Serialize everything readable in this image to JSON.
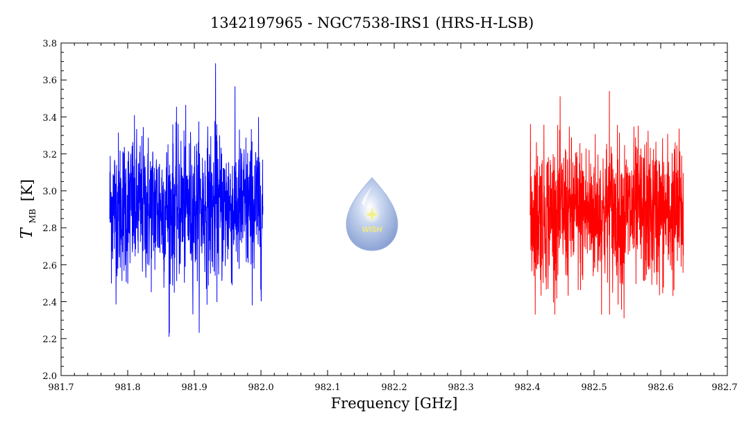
{
  "chart_data": {
    "type": "line",
    "title": "1342197965 - NGC7538-IRS1 (HRS-H-LSB)",
    "xlabel": "Frequency [GHz]",
    "ylabel_main": "T",
    "ylabel_sub": "MB",
    "ylabel_unit": "[K]",
    "xlim": [
      981.7,
      982.7
    ],
    "ylim": [
      2.0,
      3.8
    ],
    "xticks": [
      "981.7",
      "981.8",
      "981.9",
      "982.0",
      "982.1",
      "982.2",
      "982.3",
      "982.4",
      "982.5",
      "982.6",
      "982.7"
    ],
    "yticks": [
      "2.0",
      "2.2",
      "2.4",
      "2.6",
      "2.8",
      "3.0",
      "3.2",
      "3.4",
      "3.6",
      "3.8"
    ],
    "grid": false,
    "series": [
      {
        "color": "#0000ff",
        "x_range": [
          981.773,
          982.003
        ],
        "mean": 2.91,
        "noise_rms": 0.2,
        "max": 3.69,
        "max_at": 981.932,
        "min": 2.21,
        "min_at": 981.862
      },
      {
        "color": "#ff0000",
        "x_range": [
          982.404,
          982.634
        ],
        "mean": 2.88,
        "noise_rms": 0.2,
        "max": 3.54,
        "max_at": 982.523,
        "min": 2.31,
        "min_at": 982.545
      }
    ]
  },
  "logo": {
    "text": "WISH",
    "position": "center",
    "colors": {
      "drop": "#8fa8d8",
      "star": "#fff8a0",
      "text": "#f2ec78"
    }
  }
}
